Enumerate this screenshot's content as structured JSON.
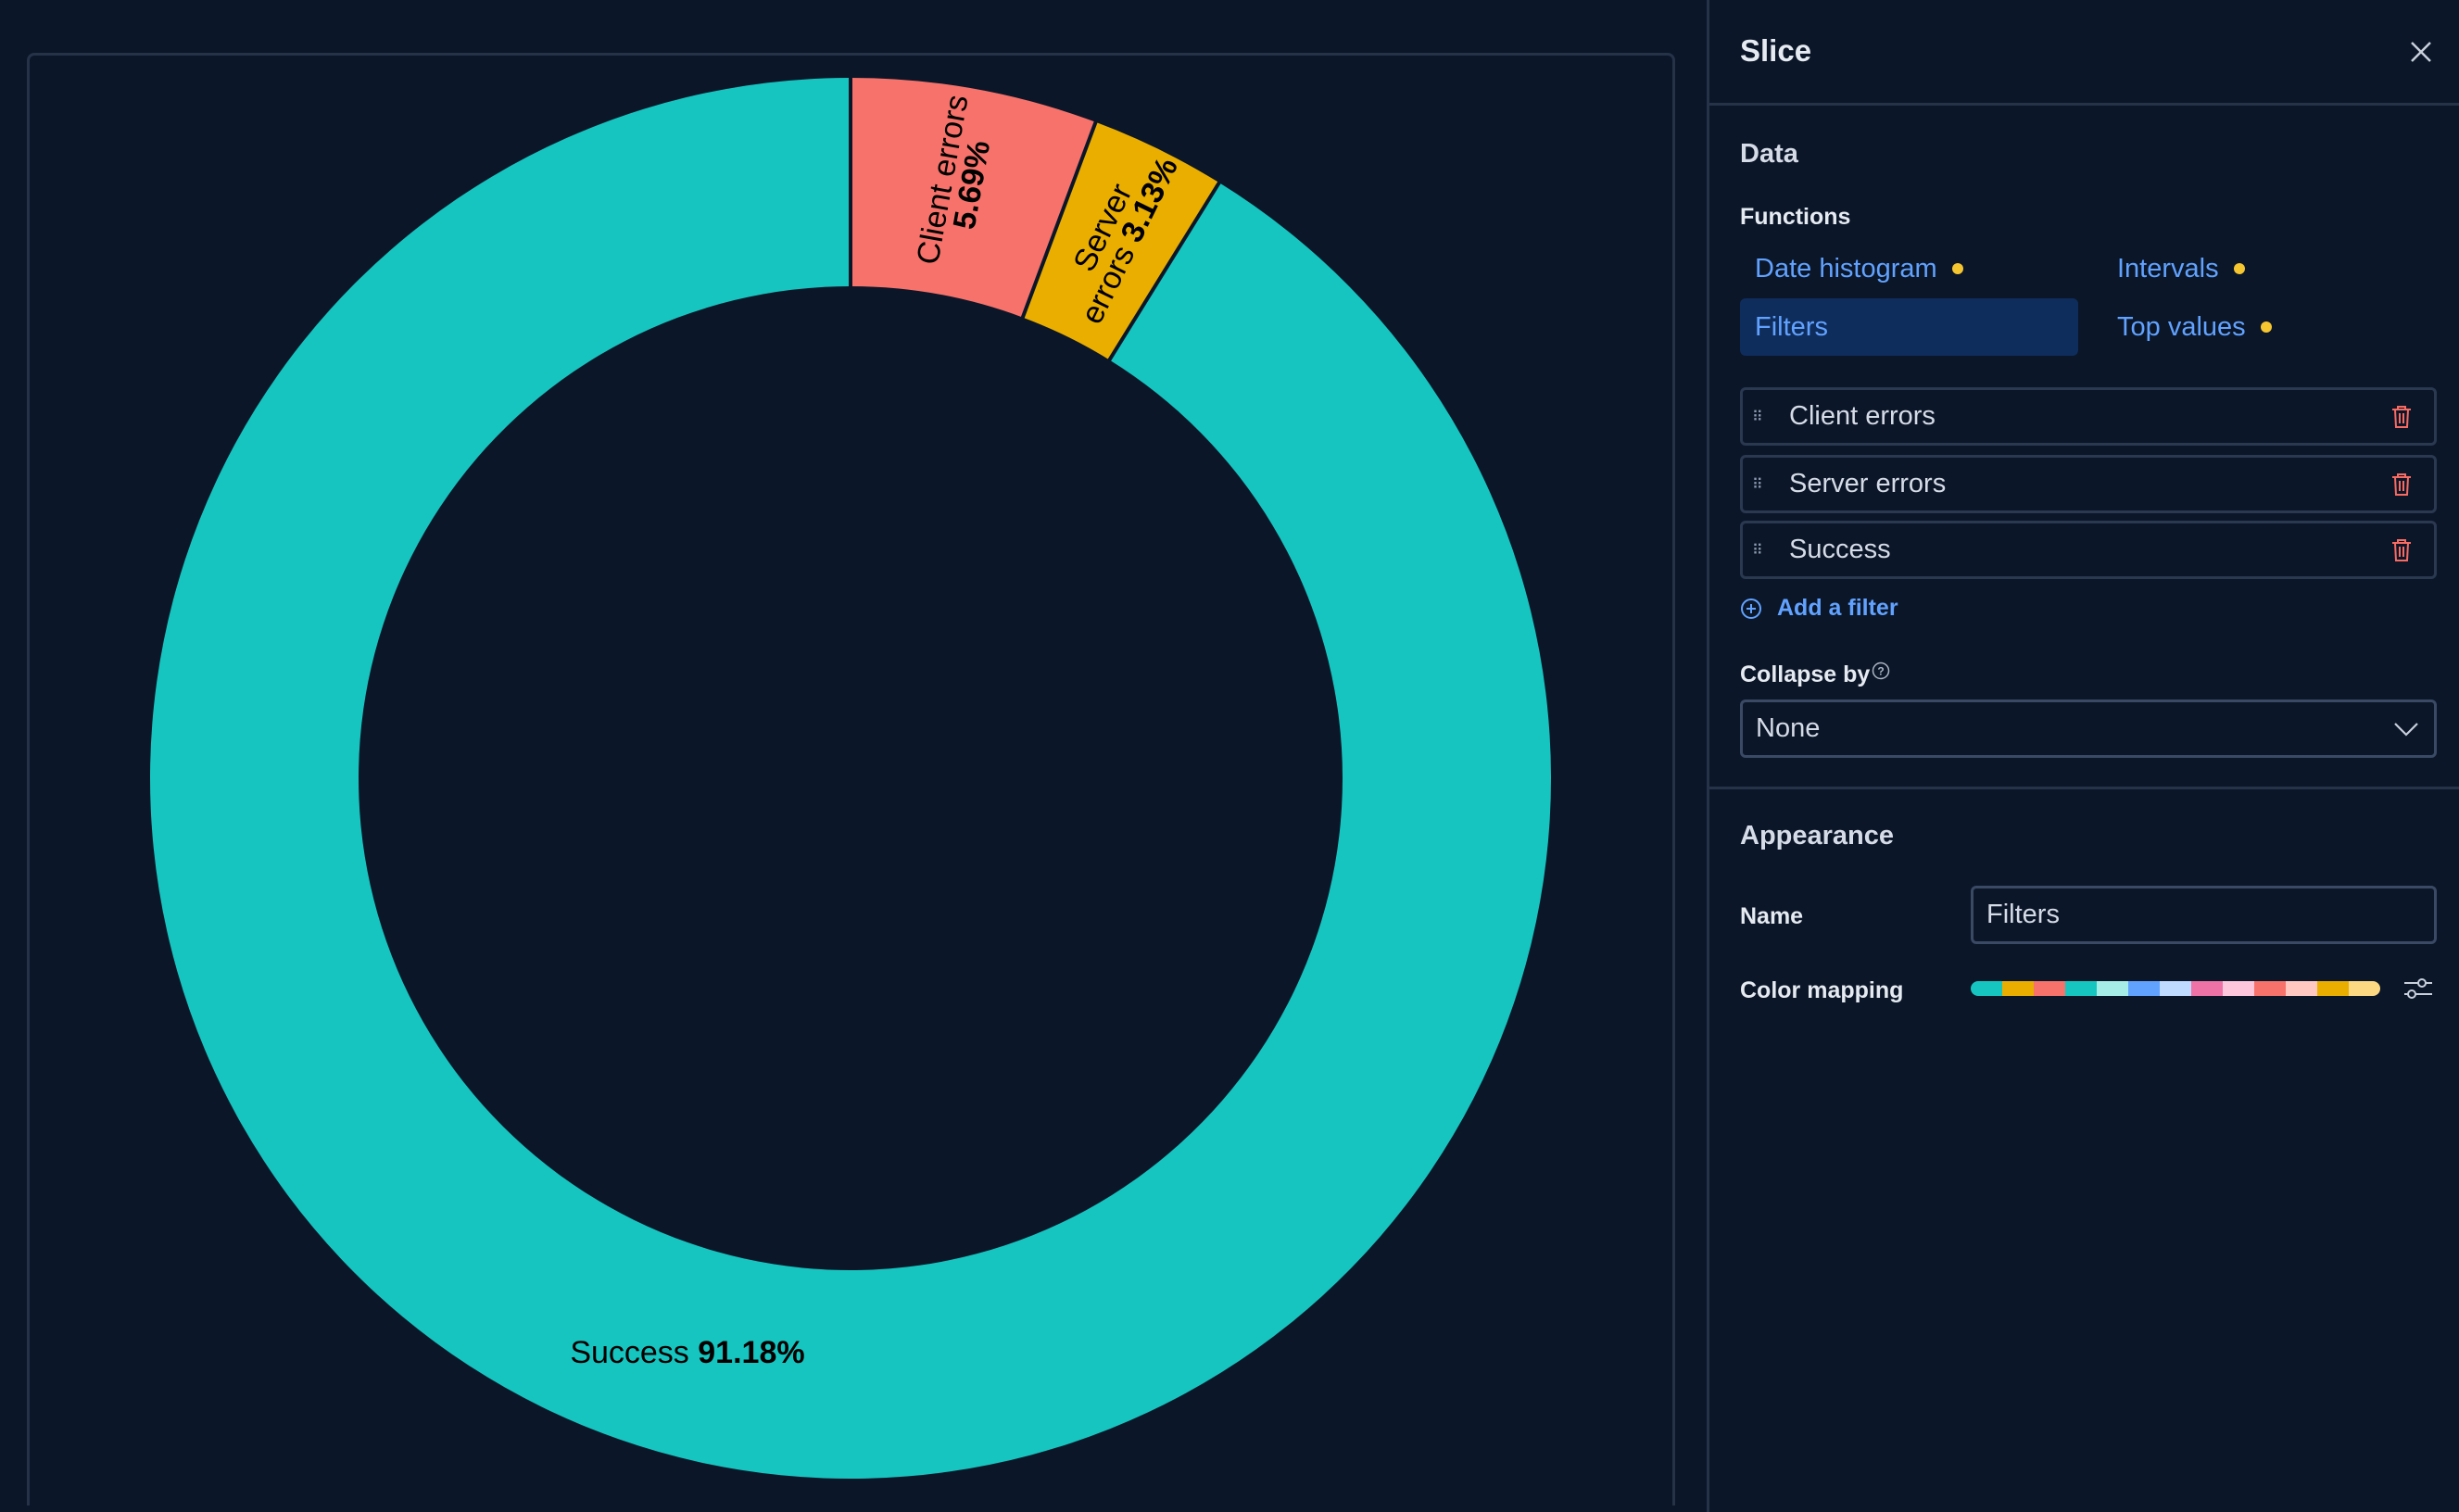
{
  "chart_data": {
    "type": "pie",
    "donut": true,
    "slices": [
      {
        "label": "Client errors",
        "value": 5.69,
        "value_label": "5.69%",
        "color": "#f6726a"
      },
      {
        "label": "Server errors",
        "value": 3.13,
        "value_label": "3.13%",
        "color": "#eaae01"
      },
      {
        "label": "Success",
        "value": 91.18,
        "value_label": "91.18%",
        "color": "#16c5c0"
      }
    ]
  },
  "panel": {
    "title": "Slice",
    "close_icon": "close-icon",
    "data_heading": "Data",
    "functions_label": "Functions",
    "functions": [
      {
        "label": "Date histogram",
        "dot": true,
        "selected": false
      },
      {
        "label": "Intervals",
        "dot": true,
        "selected": false
      },
      {
        "label": "Filters",
        "dot": false,
        "selected": true
      },
      {
        "label": "Top values",
        "dot": true,
        "selected": false
      }
    ],
    "filters": [
      {
        "label": "Client errors"
      },
      {
        "label": "Server errors"
      },
      {
        "label": "Success"
      }
    ],
    "add_filter": "Add a filter",
    "collapse_label": "Collapse by",
    "collapse_value": "None",
    "appearance_heading": "Appearance",
    "name_label": "Name",
    "name_value": "Filters",
    "color_mapping_label": "Color mapping",
    "color_mapping": [
      "#16c5c0",
      "#eaae01",
      "#f6726a",
      "#16c5c0",
      "#a6ede8",
      "#61a2ff",
      "#bfdbff",
      "#ee72a6",
      "#ffc7db",
      "#f6726a",
      "#ffc9c2",
      "#eaae01",
      "#fcd883"
    ]
  },
  "colors": {
    "accent": "#61a2ff",
    "background": "#0b1628",
    "indicator": "#f6c631",
    "danger": "#f86b63"
  }
}
